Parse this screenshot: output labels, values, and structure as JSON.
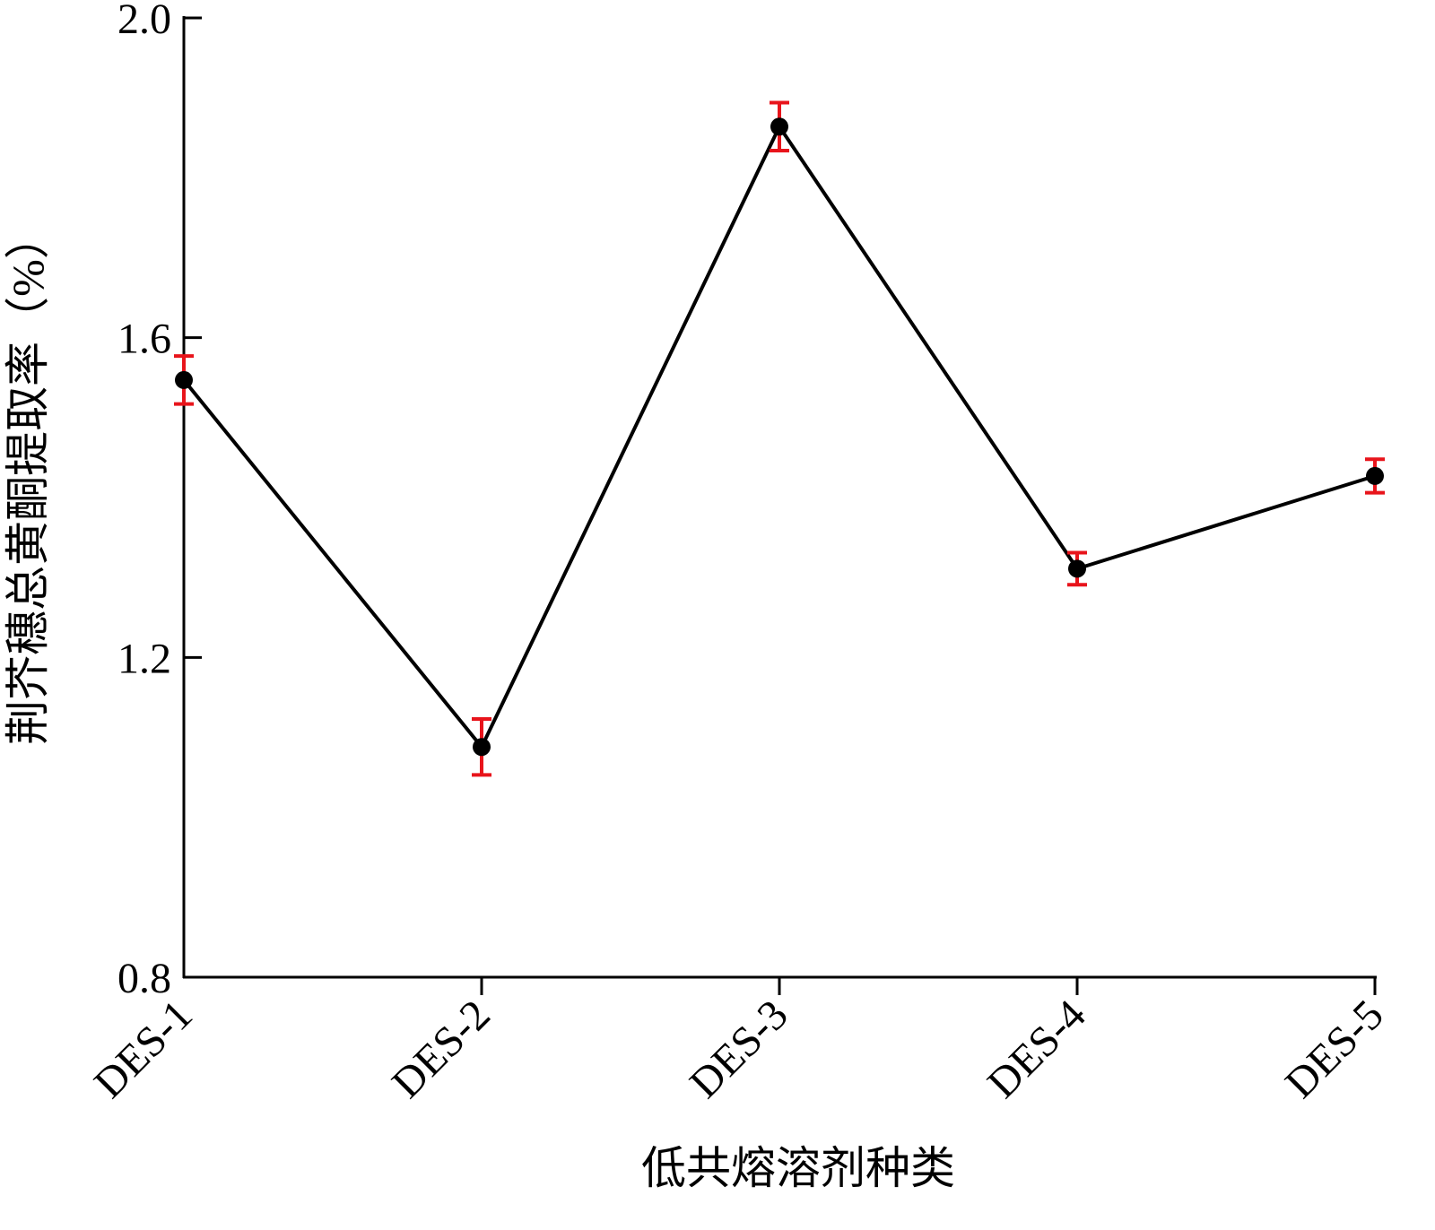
{
  "chart_data": {
    "type": "line",
    "x_label": "低共熔溶剂种类",
    "y_label": "荆芥穗总黄酮提取率（%）",
    "categories": [
      "DES-1",
      "DES-2",
      "DES-3",
      "DES-4",
      "DES-5"
    ],
    "values": [
      1.547,
      1.088,
      1.864,
      1.311,
      1.427
    ],
    "errors": [
      0.03,
      0.035,
      0.03,
      0.02,
      0.021
    ],
    "color": "#000000",
    "error_color": "#e8141b",
    "ylim": [
      0.8,
      2.0
    ],
    "yticks": [
      0.8,
      1.2,
      1.6,
      {
        "value": 2.0,
        "label": "2.0"
      }
    ]
  }
}
